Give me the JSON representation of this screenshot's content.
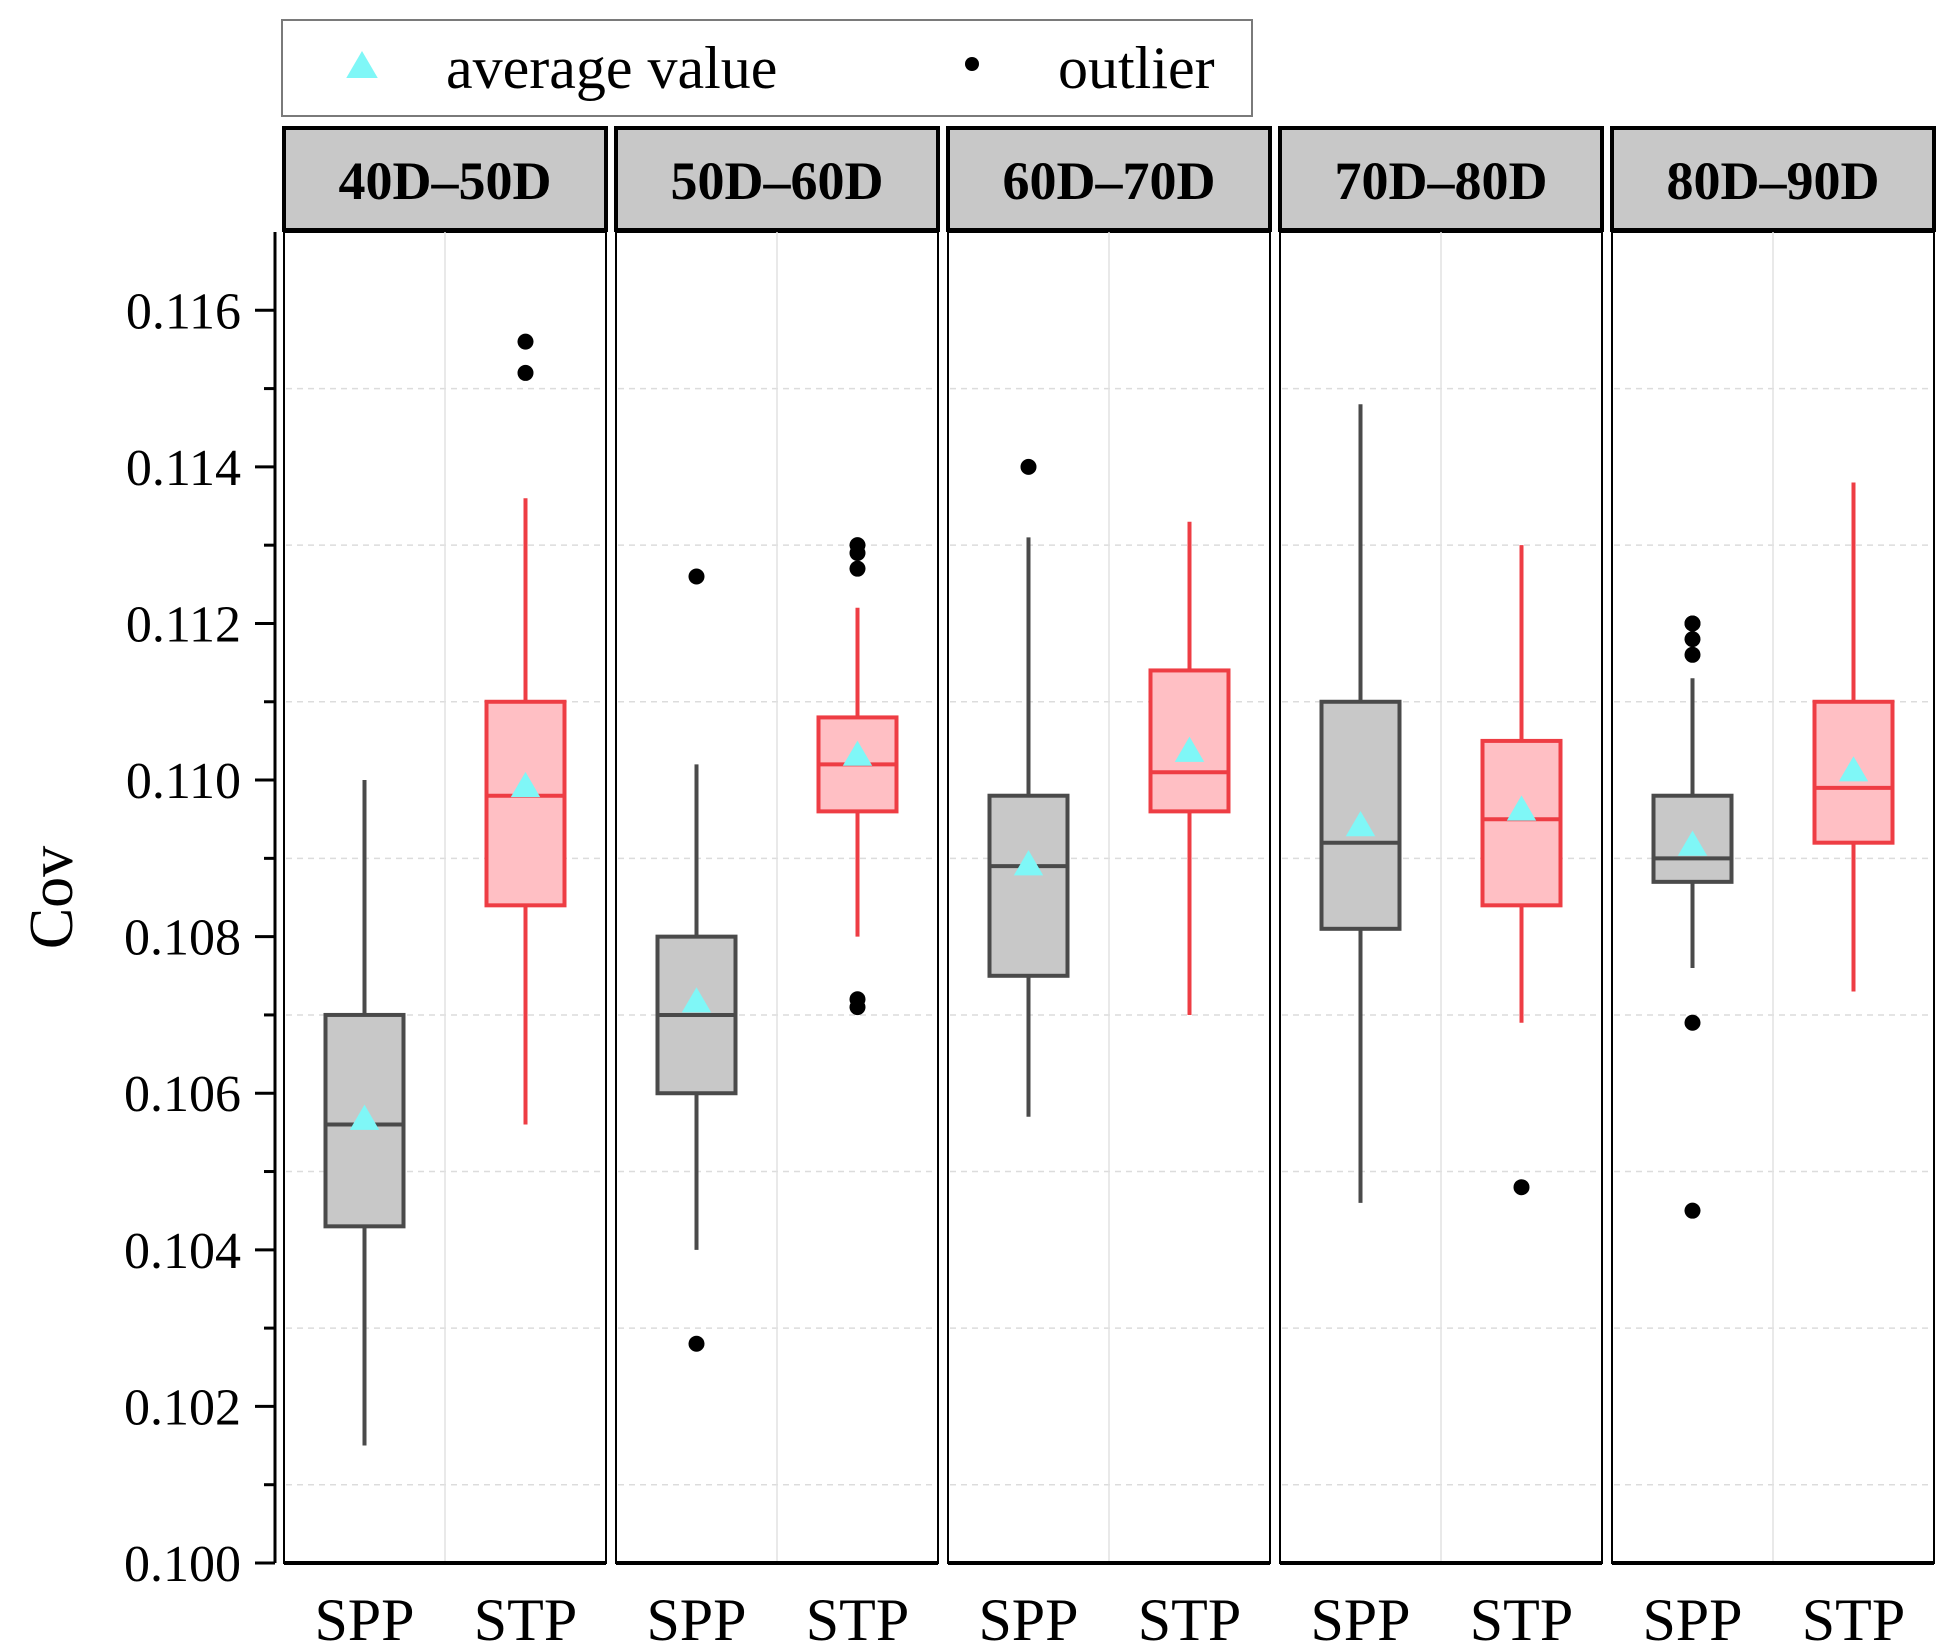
{
  "chart_data": {
    "type": "box",
    "title": "",
    "ylabel": "Cov",
    "ylim": [
      0.1,
      0.117
    ],
    "yticks": [
      "0.100",
      "0.102",
      "0.104",
      "0.106",
      "0.108",
      "0.110",
      "0.112",
      "0.114",
      "0.116"
    ],
    "ytick_values": [
      0.1,
      0.102,
      0.104,
      0.106,
      0.108,
      0.11,
      0.112,
      0.114,
      0.116
    ],
    "grid": true,
    "legend": {
      "position": "top",
      "items": [
        {
          "label": "average value",
          "marker": "triangle",
          "color": "#7ff7f7"
        },
        {
          "label": "outlier",
          "marker": "dot",
          "color": "#000000"
        }
      ]
    },
    "colors": {
      "SPP": {
        "fill": "#c8c8c8",
        "stroke": "#4a4a4a"
      },
      "STP": {
        "fill": "#ffbfc4",
        "stroke": "#ee3d44"
      },
      "mean": "#7ff7f7",
      "outlier": "#000000",
      "strip": "#c8c8c8"
    },
    "panels": [
      {
        "label": "40D–50D",
        "groups": [
          {
            "name": "SPP",
            "whisker_low": 0.1015,
            "q1": 0.1043,
            "median": 0.1056,
            "q3": 0.107,
            "whisker_high": 0.11,
            "mean": 0.10565,
            "outliers": []
          },
          {
            "name": "STP",
            "whisker_low": 0.1056,
            "q1": 0.1084,
            "median": 0.1098,
            "q3": 0.111,
            "whisker_high": 0.1136,
            "mean": 0.1099,
            "outliers": [
              0.1156,
              0.1152
            ]
          }
        ]
      },
      {
        "label": "50D–60D",
        "groups": [
          {
            "name": "SPP",
            "whisker_low": 0.104,
            "q1": 0.106,
            "median": 0.107,
            "q3": 0.108,
            "whisker_high": 0.1102,
            "mean": 0.10715,
            "outliers": [
              0.1126,
              0.1028
            ]
          },
          {
            "name": "STP",
            "whisker_low": 0.108,
            "q1": 0.1096,
            "median": 0.1102,
            "q3": 0.1108,
            "whisker_high": 0.1122,
            "mean": 0.1103,
            "outliers": [
              0.113,
              0.1129,
              0.1127,
              0.1072,
              0.1071
            ]
          }
        ]
      },
      {
        "label": "60D–70D",
        "groups": [
          {
            "name": "SPP",
            "whisker_low": 0.1057,
            "q1": 0.1075,
            "median": 0.1089,
            "q3": 0.1098,
            "whisker_high": 0.1131,
            "mean": 0.1089,
            "outliers": [
              0.114
            ]
          },
          {
            "name": "STP",
            "whisker_low": 0.107,
            "q1": 0.1096,
            "median": 0.1101,
            "q3": 0.1114,
            "whisker_high": 0.1133,
            "mean": 0.11035,
            "outliers": []
          }
        ]
      },
      {
        "label": "70D–80D",
        "groups": [
          {
            "name": "SPP",
            "whisker_low": 0.1046,
            "q1": 0.1081,
            "median": 0.1092,
            "q3": 0.111,
            "whisker_high": 0.1148,
            "mean": 0.1094,
            "outliers": []
          },
          {
            "name": "STP",
            "whisker_low": 0.1069,
            "q1": 0.1084,
            "median": 0.1095,
            "q3": 0.1105,
            "whisker_high": 0.113,
            "mean": 0.1096,
            "outliers": [
              0.1048
            ]
          }
        ]
      },
      {
        "label": "80D–90D",
        "groups": [
          {
            "name": "SPP",
            "whisker_low": 0.1076,
            "q1": 0.1087,
            "median": 0.109,
            "q3": 0.1098,
            "whisker_high": 0.1113,
            "mean": 0.10915,
            "outliers": [
              0.112,
              0.112,
              0.1118,
              0.1116,
              0.1069,
              0.1045
            ]
          },
          {
            "name": "STP",
            "whisker_low": 0.1073,
            "q1": 0.1092,
            "median": 0.1099,
            "q3": 0.111,
            "whisker_high": 0.1138,
            "mean": 0.1101,
            "outliers": []
          }
        ]
      }
    ]
  }
}
